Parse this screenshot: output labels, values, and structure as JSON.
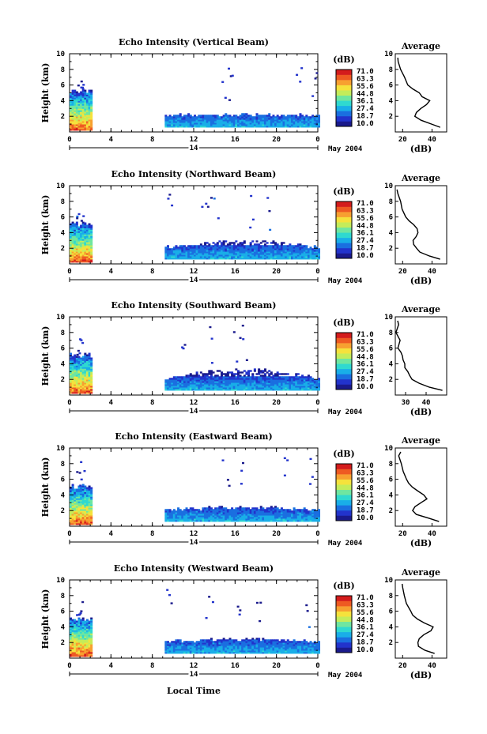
{
  "figure": {
    "date_label": "May 2004",
    "day_label": "14",
    "bottom_xlabel": "Local Time"
  },
  "colorbar": {
    "unit": "(dB)",
    "tick_labels": [
      "71.0",
      "63.3",
      "55.6",
      "44.8",
      "36.1",
      "27.4",
      "18.7",
      "10.0"
    ],
    "colors": [
      "#1a1a8c",
      "#2233cc",
      "#1a6fe0",
      "#19aee8",
      "#2fd9d0",
      "#6fe6a0",
      "#c4ec5a",
      "#f5e23c",
      "#f7a030",
      "#ee5a22",
      "#d41c1c"
    ]
  },
  "chart_data": [
    {
      "type": "heatmap",
      "title": "Echo Intensity (Vertical Beam)",
      "ylabel": "Height (km)",
      "xlim": [
        0,
        24
      ],
      "ylim": [
        0,
        10
      ],
      "x_ticks": [
        "0",
        "4",
        "8",
        "12",
        "16",
        "20",
        "0"
      ],
      "y_ticks": [
        "2",
        "4",
        "6",
        "8",
        "10"
      ],
      "clim": [
        10.0,
        71.0
      ],
      "blocks": [
        {
          "x0": 0,
          "x1": 2,
          "top_km": 5.2,
          "peak_km": 6.8,
          "surface_db": 65
        },
        {
          "x0": 9.2,
          "x1": 24,
          "top_km": 2.0,
          "surface_db": 30
        }
      ],
      "sparse_echo_times": [
        15,
        15.3,
        22,
        23.5
      ],
      "profile": {
        "title": "Average",
        "xlabel": "(dB)",
        "xlim": [
          15,
          50
        ],
        "x_ticks": [
          "20",
          "40"
        ],
        "heights_km": [
          0.6,
          1.0,
          1.5,
          2.0,
          2.5,
          3.0,
          3.5,
          4.0,
          4.5,
          5.0,
          5.5,
          6.0,
          7.0,
          8.0,
          9.0,
          9.5
        ],
        "values_db": [
          46,
          40,
          32,
          28,
          29,
          33,
          36,
          38,
          34,
          31,
          27,
          24,
          22,
          19,
          17,
          16
        ]
      }
    },
    {
      "type": "heatmap",
      "title": "Echo Intensity (Northward Beam)",
      "ylabel": "Height (km)",
      "xlim": [
        0,
        24
      ],
      "ylim": [
        0,
        10
      ],
      "x_ticks": [
        "0",
        "4",
        "8",
        "12",
        "16",
        "20",
        "0"
      ],
      "y_ticks": [
        "2",
        "4",
        "6",
        "8",
        "10"
      ],
      "clim": [
        10.0,
        71.0
      ],
      "blocks": [
        {
          "x0": 0,
          "x1": 2,
          "top_km": 5.0,
          "peak_km": 6.6,
          "surface_db": 65
        },
        {
          "x0": 9.2,
          "x1": 24,
          "top_km": 3.0,
          "surface_db": 30
        }
      ],
      "sparse_echo_times": [
        9.5,
        13,
        14,
        17.5,
        19
      ],
      "profile": {
        "title": "Average",
        "xlabel": "(dB)",
        "xlim": [
          15,
          50
        ],
        "x_ticks": [
          "20",
          "40"
        ],
        "heights_km": [
          0.6,
          1.0,
          1.5,
          2.0,
          2.5,
          3.0,
          3.5,
          4.0,
          4.5,
          5.0,
          5.5,
          6.0,
          7.0,
          8.0,
          9.0,
          9.5
        ],
        "values_db": [
          45,
          38,
          32,
          29,
          28,
          27,
          29,
          31,
          30,
          27,
          24,
          22,
          20,
          18,
          17,
          16
        ]
      }
    },
    {
      "type": "heatmap",
      "title": "Echo Intensity (Southward Beam)",
      "ylabel": "Height (km)",
      "xlim": [
        0,
        24
      ],
      "ylim": [
        0,
        10
      ],
      "x_ticks": [
        "0",
        "4",
        "8",
        "12",
        "16",
        "20",
        "0"
      ],
      "y_ticks": [
        "2",
        "4",
        "6",
        "8",
        "10"
      ],
      "clim": [
        10.0,
        71.0
      ],
      "blocks": [
        {
          "x0": 0,
          "x1": 2,
          "top_km": 5.0,
          "peak_km": 7.5,
          "surface_db": 65
        },
        {
          "x0": 9.2,
          "x1": 24,
          "top_km": 3.5,
          "surface_db": 30
        }
      ],
      "sparse_echo_times": [
        11,
        13.5,
        16,
        17
      ],
      "profile": {
        "title": "Average",
        "xlabel": "(dB)",
        "xlim": [
          25,
          50
        ],
        "x_ticks": [
          "30",
          "40"
        ],
        "heights_km": [
          0.6,
          1.0,
          1.5,
          2.0,
          2.5,
          3.0,
          3.5,
          4.0,
          4.5,
          5.0,
          5.5,
          6.0,
          7.0,
          8.0,
          9.0,
          9.5
        ],
        "values_db": [
          48,
          42,
          36,
          33,
          32,
          31,
          30,
          30,
          29,
          28,
          28,
          27,
          27,
          26,
          26,
          26
        ]
      }
    },
    {
      "type": "heatmap",
      "title": "Echo Intensity (Eastward Beam)",
      "ylabel": "Height (km)",
      "xlim": [
        0,
        24
      ],
      "ylim": [
        0,
        10
      ],
      "x_ticks": [
        "0",
        "4",
        "8",
        "12",
        "16",
        "20",
        "0"
      ],
      "y_ticks": [
        "2",
        "4",
        "6",
        "8",
        "10"
      ],
      "clim": [
        10.0,
        71.0
      ],
      "blocks": [
        {
          "x0": 0,
          "x1": 2,
          "top_km": 5.0,
          "peak_km": 8.5,
          "surface_db": 65
        },
        {
          "x0": 9.2,
          "x1": 24,
          "top_km": 2.2,
          "surface_db": 30
        }
      ],
      "sparse_echo_times": [
        15,
        16.5,
        21,
        23.5
      ],
      "profile": {
        "title": "Average",
        "xlabel": "(dB)",
        "xlim": [
          15,
          50
        ],
        "x_ticks": [
          "20",
          "40"
        ],
        "heights_km": [
          0.6,
          1.0,
          1.5,
          2.0,
          2.5,
          3.0,
          3.5,
          4.0,
          4.5,
          5.0,
          5.5,
          6.0,
          7.0,
          8.0,
          9.0,
          9.5
        ],
        "values_db": [
          45,
          38,
          30,
          27,
          28,
          33,
          36,
          34,
          30,
          27,
          24,
          22,
          20,
          19,
          18,
          18
        ]
      }
    },
    {
      "type": "heatmap",
      "title": "Echo Intensity (Westward Beam)",
      "ylabel": "Height (km)",
      "xlim": [
        0,
        24
      ],
      "ylim": [
        0,
        10
      ],
      "x_ticks": [
        "0",
        "4",
        "8",
        "12",
        "16",
        "20",
        "0"
      ],
      "y_ticks": [
        "2",
        "4",
        "6",
        "8",
        "10"
      ],
      "xlabel": "Local Time",
      "clim": [
        10.0,
        71.0
      ],
      "blocks": [
        {
          "x0": 0,
          "x1": 2,
          "top_km": 4.8,
          "peak_km": 7.4,
          "surface_db": 65
        },
        {
          "x0": 9.2,
          "x1": 24,
          "top_km": 2.3,
          "surface_db": 30
        }
      ],
      "sparse_echo_times": [
        9.5,
        13.5,
        16.5,
        18,
        23
      ],
      "profile": {
        "title": "Average",
        "xlabel": "(dB)",
        "xlim": [
          15,
          50
        ],
        "x_ticks": [
          "20",
          "40"
        ],
        "heights_km": [
          0.6,
          1.0,
          1.5,
          2.0,
          2.5,
          3.0,
          3.5,
          4.0,
          4.5,
          5.0,
          5.5,
          6.0,
          7.0,
          8.0,
          9.0,
          9.5
        ],
        "values_db": [
          42,
          36,
          31,
          30,
          31,
          34,
          39,
          41,
          35,
          30,
          27,
          25,
          22,
          21,
          20,
          19
        ]
      }
    }
  ]
}
